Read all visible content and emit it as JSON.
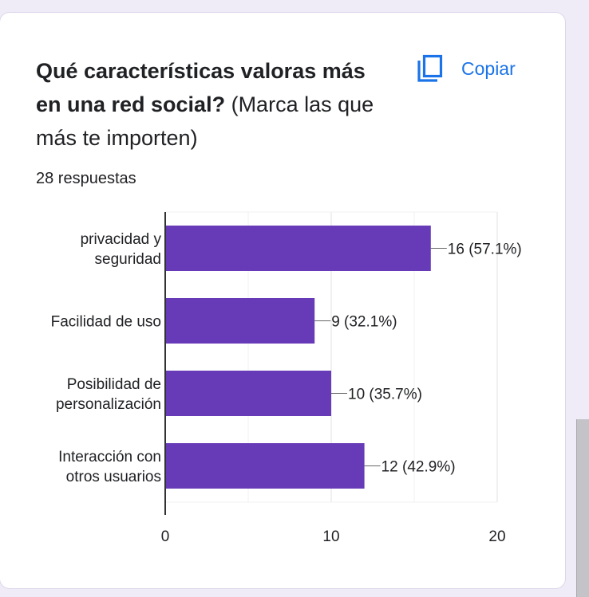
{
  "question": {
    "bold": "Qué características valoras más en una red social?",
    "normal": " (Marca las que más te importen)"
  },
  "copy_button": {
    "label": "Copiar",
    "icon": "copy-icon"
  },
  "response_count": "28 respuestas",
  "colors": {
    "bar": "#673ab7",
    "accent": "#1a73e8",
    "text": "#202124",
    "grid": "#e0e0e0",
    "background": "#efebf7"
  },
  "chart_data": {
    "type": "bar",
    "orientation": "horizontal",
    "categories": [
      [
        "privacidad y",
        "seguridad"
      ],
      [
        "Facilidad de uso"
      ],
      [
        "Posibilidad de",
        "personalización"
      ],
      [
        "Interacción con",
        "otros usuarios"
      ]
    ],
    "values": [
      16,
      9,
      10,
      12
    ],
    "value_labels": [
      "16 (57.1%)",
      "9 (32.1%)",
      "10 (35.7%)",
      "12 (42.9%)"
    ],
    "xlim": [
      0,
      20
    ],
    "xticks": [
      0,
      10,
      20
    ],
    "grid": true,
    "title": "",
    "xlabel": "",
    "ylabel": ""
  }
}
